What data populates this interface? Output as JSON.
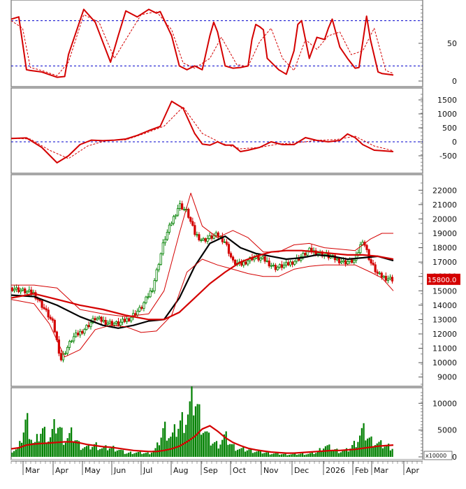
{
  "chart_data": [
    {
      "type": "line",
      "panel": "stochastic",
      "ylim": [
        0,
        100
      ],
      "y_ticks": [
        0,
        50
      ],
      "reference_lines": [
        20,
        80
      ],
      "reference_color": "#0000cc",
      "series": [
        {
          "role": "k",
          "color": "#d40000",
          "x": [
            0,
            0.02,
            0.04,
            0.05,
            0.08,
            0.12,
            0.14,
            0.15,
            0.19,
            0.22,
            0.26,
            0.28,
            0.3,
            0.33,
            0.36,
            0.38,
            0.39,
            0.42,
            0.44,
            0.46,
            0.48,
            0.5,
            0.52,
            0.53,
            0.54,
            0.56,
            0.58,
            0.6,
            0.62,
            0.63,
            0.64,
            0.65,
            0.66,
            0.67,
            0.7,
            0.72,
            0.74,
            0.75,
            0.76,
            0.78,
            0.8,
            0.82,
            0.83,
            0.84,
            0.86,
            0.88,
            0.9,
            0.91,
            0.93,
            0.94,
            0.96,
            0.97,
            1.0
          ],
          "y": [
            82,
            85,
            15,
            14,
            12,
            5,
            6,
            35,
            95,
            78,
            25,
            60,
            93,
            85,
            95,
            90,
            92,
            60,
            20,
            15,
            20,
            15,
            60,
            78,
            65,
            20,
            17,
            18,
            20,
            55,
            75,
            72,
            68,
            30,
            15,
            9,
            40,
            75,
            80,
            30,
            58,
            55,
            70,
            82,
            45,
            30,
            17,
            18,
            86,
            55,
            12,
            10,
            8
          ]
        },
        {
          "role": "d",
          "color": "#d40000",
          "dashed": true,
          "x": [
            0,
            0.03,
            0.05,
            0.08,
            0.12,
            0.15,
            0.19,
            0.23,
            0.27,
            0.3,
            0.34,
            0.38,
            0.42,
            0.45,
            0.48,
            0.52,
            0.55,
            0.59,
            0.62,
            0.65,
            0.68,
            0.71,
            0.74,
            0.77,
            0.8,
            0.83,
            0.86,
            0.89,
            0.92,
            0.95,
            0.98,
            1.0
          ],
          "y": [
            80,
            70,
            18,
            14,
            7,
            25,
            88,
            78,
            30,
            55,
            88,
            92,
            68,
            24,
            17,
            30,
            58,
            22,
            19,
            52,
            70,
            30,
            14,
            55,
            42,
            60,
            65,
            35,
            40,
            70,
            14,
            10
          ]
        }
      ]
    },
    {
      "type": "line",
      "panel": "macd",
      "ylim": [
        -1000,
        1700
      ],
      "y_ticks": [
        -500,
        0,
        500,
        1000,
        1500
      ],
      "reference_lines": [
        0
      ],
      "reference_color": "#0000cc",
      "series": [
        {
          "role": "macd",
          "color": "#d40000",
          "x": [
            0,
            0.04,
            0.08,
            0.12,
            0.15,
            0.18,
            0.21,
            0.24,
            0.27,
            0.3,
            0.33,
            0.36,
            0.39,
            0.42,
            0.45,
            0.48,
            0.5,
            0.52,
            0.54,
            0.56,
            0.58,
            0.6,
            0.62,
            0.65,
            0.68,
            0.71,
            0.74,
            0.77,
            0.8,
            0.83,
            0.86,
            0.88,
            0.9,
            0.92,
            0.95,
            0.97,
            1.0
          ],
          "y": [
            120,
            140,
            -200,
            -750,
            -500,
            -100,
            60,
            40,
            60,
            100,
            230,
            400,
            550,
            1450,
            1200,
            300,
            -80,
            -120,
            0,
            -120,
            -120,
            -350,
            -300,
            -200,
            0,
            -100,
            -100,
            150,
            50,
            0,
            50,
            280,
            150,
            -100,
            -300,
            -320,
            -350
          ]
        },
        {
          "role": "signal",
          "color": "#d40000",
          "dashed": true,
          "x": [
            0,
            0.05,
            0.1,
            0.15,
            0.2,
            0.25,
            0.3,
            0.35,
            0.4,
            0.45,
            0.5,
            0.55,
            0.6,
            0.65,
            0.7,
            0.75,
            0.8,
            0.85,
            0.9,
            0.95,
            1.0
          ],
          "y": [
            130,
            100,
            -300,
            -600,
            -150,
            50,
            70,
            300,
            560,
            1250,
            300,
            -50,
            -250,
            -200,
            -80,
            -30,
            50,
            80,
            200,
            -150,
            -320
          ]
        }
      ]
    },
    {
      "type": "line",
      "panel": "price",
      "ylim": [
        8500,
        22500
      ],
      "y_ticks": [
        9000,
        10000,
        11000,
        12000,
        13000,
        14000,
        15000,
        16000,
        17000,
        18000,
        19000,
        20000,
        21000,
        22000
      ],
      "last_price_label": "15800.0",
      "last_price_value": 15800,
      "series": [
        {
          "role": "close",
          "color": "#008000",
          "x": [
            0,
            0.03,
            0.06,
            0.09,
            0.11,
            0.13,
            0.16,
            0.19,
            0.22,
            0.25,
            0.28,
            0.31,
            0.34,
            0.37,
            0.4,
            0.42,
            0.44,
            0.46,
            0.48,
            0.5,
            0.52,
            0.54,
            0.56,
            0.58,
            0.6,
            0.63,
            0.66,
            0.69,
            0.72,
            0.75,
            0.78,
            0.81,
            0.84,
            0.87,
            0.9,
            0.92,
            0.94,
            0.96,
            0.98,
            1.0
          ],
          "y": [
            15200,
            15000,
            14800,
            13600,
            12700,
            10200,
            11700,
            12300,
            13100,
            12800,
            12700,
            13100,
            13800,
            15200,
            18500,
            19800,
            21000,
            20500,
            19000,
            18500,
            18700,
            18900,
            18400,
            17000,
            16800,
            17300,
            17200,
            16600,
            16800,
            17200,
            17800,
            17600,
            17300,
            17000,
            17100,
            18600,
            17000,
            16100,
            15900,
            15800
          ]
        },
        {
          "role": "sma-black",
          "color": "#000000",
          "x": [
            0,
            0.06,
            0.12,
            0.18,
            0.24,
            0.28,
            0.32,
            0.36,
            0.4,
            0.44,
            0.48,
            0.52,
            0.56,
            0.6,
            0.64,
            0.68,
            0.72,
            0.76,
            0.8,
            0.84,
            0.88,
            0.92,
            0.96,
            1.0
          ],
          "y": [
            14700,
            14600,
            14000,
            13200,
            12600,
            12400,
            12600,
            12900,
            13000,
            14500,
            16700,
            18300,
            18800,
            18000,
            17600,
            17400,
            17200,
            17300,
            17500,
            17400,
            17200,
            17300,
            17400,
            17100
          ]
        },
        {
          "role": "sma-red",
          "color": "#d40000",
          "x": [
            0,
            0.06,
            0.12,
            0.18,
            0.24,
            0.3,
            0.36,
            0.4,
            0.44,
            0.48,
            0.52,
            0.56,
            0.6,
            0.64,
            0.68,
            0.72,
            0.76,
            0.8,
            0.84,
            0.88,
            0.92,
            0.96,
            1.0
          ],
          "y": [
            14500,
            14800,
            14400,
            14000,
            13700,
            13300,
            13000,
            13000,
            13500,
            14500,
            15500,
            16300,
            17000,
            17400,
            17700,
            17800,
            17800,
            17700,
            17600,
            17500,
            17500,
            17400,
            17200
          ]
        },
        {
          "role": "bollinger-upper",
          "color": "#d40000",
          "x": [
            0,
            0.06,
            0.12,
            0.18,
            0.24,
            0.3,
            0.36,
            0.4,
            0.44,
            0.47,
            0.5,
            0.54,
            0.58,
            0.62,
            0.66,
            0.7,
            0.74,
            0.78,
            0.82,
            0.86,
            0.9,
            0.94,
            0.97,
            1.0
          ],
          "y": [
            15400,
            15400,
            15200,
            13700,
            13400,
            13200,
            13400,
            15000,
            19000,
            21800,
            19500,
            18700,
            19200,
            18700,
            17700,
            17700,
            18200,
            18300,
            18000,
            17900,
            17800,
            18600,
            19000,
            19000
          ]
        },
        {
          "role": "bollinger-lower",
          "color": "#d40000",
          "x": [
            0,
            0.06,
            0.1,
            0.14,
            0.18,
            0.22,
            0.26,
            0.3,
            0.34,
            0.38,
            0.42,
            0.46,
            0.5,
            0.54,
            0.58,
            0.62,
            0.66,
            0.7,
            0.74,
            0.78,
            0.82,
            0.86,
            0.9,
            0.94,
            0.97,
            1.0
          ],
          "y": [
            14400,
            14100,
            12700,
            10400,
            10900,
            12300,
            12600,
            12500,
            12100,
            12200,
            13300,
            16300,
            17200,
            16800,
            16500,
            16200,
            16000,
            16000,
            16500,
            16700,
            16800,
            16800,
            16800,
            16300,
            15900,
            15000
          ]
        }
      ]
    },
    {
      "type": "bar",
      "panel": "volume",
      "ylim": [
        0,
        12000
      ],
      "y_ticks": [
        0,
        5000,
        10000
      ],
      "unit_label": "x10000",
      "colors": {
        "bars": "#008000",
        "ma": "#d40000"
      },
      "x": [
        0,
        0.02,
        0.04,
        0.06,
        0.08,
        0.1,
        0.12,
        0.14,
        0.16,
        0.18,
        0.2,
        0.22,
        0.24,
        0.26,
        0.28,
        0.3,
        0.32,
        0.34,
        0.36,
        0.38,
        0.4,
        0.42,
        0.44,
        0.46,
        0.48,
        0.5,
        0.52,
        0.54,
        0.56,
        0.58,
        0.6,
        0.62,
        0.64,
        0.66,
        0.68,
        0.7,
        0.72,
        0.74,
        0.76,
        0.78,
        0.8,
        0.82,
        0.84,
        0.86,
        0.88,
        0.9,
        0.92,
        0.94,
        0.96,
        0.98,
        1.0
      ],
      "values": [
        1300,
        1600,
        7600,
        2100,
        5500,
        3500,
        6800,
        3300,
        4500,
        2200,
        1800,
        2400,
        1600,
        1900,
        1500,
        700,
        900,
        800,
        700,
        1600,
        5800,
        3800,
        6500,
        8000,
        11800,
        6200,
        3200,
        2400,
        4000,
        2100,
        1500,
        1400,
        1100,
        900,
        700,
        600,
        500,
        500,
        600,
        600,
        900,
        2200,
        1600,
        1100,
        1300,
        2700,
        5200,
        3300,
        2600,
        2200,
        1900
      ],
      "ma": [
        1500,
        1700,
        2200,
        2400,
        2500,
        2600,
        2700,
        2800,
        2800,
        2600,
        2300,
        2100,
        1900,
        1800,
        1600,
        1400,
        1200,
        1100,
        1000,
        1000,
        1200,
        1500,
        2000,
        2800,
        3800,
        5200,
        5800,
        4800,
        3600,
        2700,
        2100,
        1600,
        1300,
        1100,
        900,
        800,
        700,
        700,
        800,
        900,
        1000,
        1100,
        1200,
        1200,
        1300,
        1400,
        1600,
        1800,
        2000,
        2100,
        2200
      ]
    }
  ],
  "x_axis": {
    "months": [
      "Mar",
      "Apr",
      "May",
      "Jun",
      "Jul",
      "Aug",
      "Sep",
      "Oct",
      "Nov",
      "Dec",
      "2026",
      "Feb",
      "Mar",
      "Apr"
    ]
  },
  "colors": {
    "up": "#008000",
    "down": "#d40000",
    "border": "#808080",
    "price_tag_bg": "#d40000"
  }
}
